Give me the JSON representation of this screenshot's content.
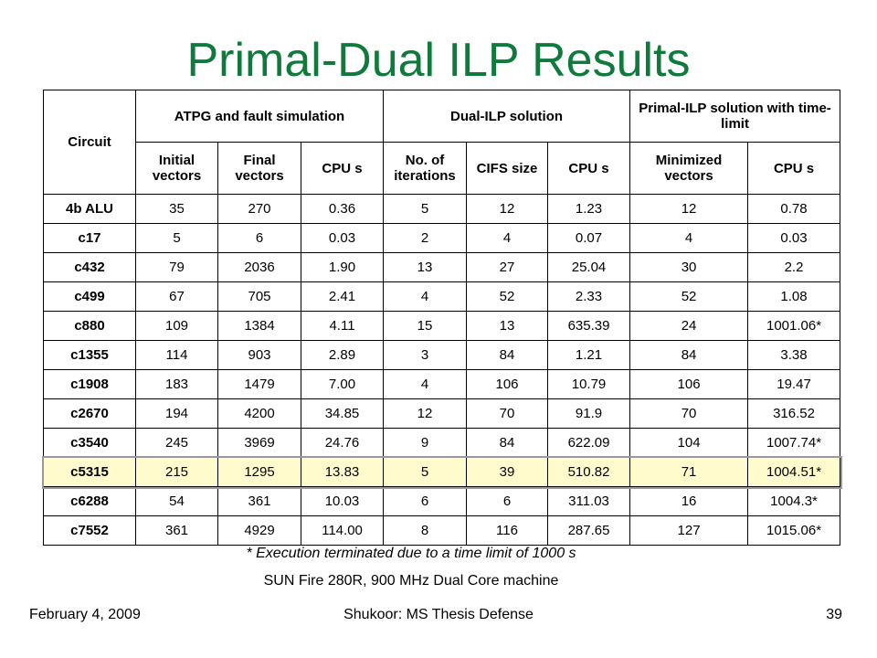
{
  "title": "Primal-Dual ILP Results",
  "header": {
    "circuit": "Circuit",
    "group_atpg": "ATPG and fault simulation",
    "group_dual": "Dual-ILP solution",
    "group_primal": "Primal-ILP solution with time-limit",
    "initial_vectors": "Initial vectors",
    "final_vectors": "Final vectors",
    "cpu": "CPU s",
    "iterations": "No. of iterations",
    "cifs": "CIFS size",
    "minimized_vectors": "Minimized vectors"
  },
  "rows": [
    [
      "4b ALU",
      "35",
      "270",
      "0.36",
      "5",
      "12",
      "1.23",
      "12",
      "0.78"
    ],
    [
      "c17",
      "5",
      "6",
      "0.03",
      "2",
      "4",
      "0.07",
      "4",
      "0.03"
    ],
    [
      "c432",
      "79",
      "2036",
      "1.90",
      "13",
      "27",
      "25.04",
      "30",
      "2.2"
    ],
    [
      "c499",
      "67",
      "705",
      "2.41",
      "4",
      "52",
      "2.33",
      "52",
      "1.08"
    ],
    [
      "c880",
      "109",
      "1384",
      "4.11",
      "15",
      "13",
      "635.39",
      "24",
      "1001.06*"
    ],
    [
      "c1355",
      "114",
      "903",
      "2.89",
      "3",
      "84",
      "1.21",
      "84",
      "3.38"
    ],
    [
      "c1908",
      "183",
      "1479",
      "7.00",
      "4",
      "106",
      "10.79",
      "106",
      "19.47"
    ],
    [
      "c2670",
      "194",
      "4200",
      "34.85",
      "12",
      "70",
      "91.9",
      "70",
      "316.52"
    ],
    [
      "c3540",
      "245",
      "3969",
      "24.76",
      "9",
      "84",
      "622.09",
      "104",
      "1007.74*"
    ],
    [
      "c5315",
      "215",
      "1295",
      "13.83",
      "5",
      "39",
      "510.82",
      "71",
      "1004.51*"
    ],
    [
      "c6288",
      "54",
      "361",
      "10.03",
      "6",
      "6",
      "311.03",
      "16",
      "1004.3*"
    ],
    [
      "c7552",
      "361",
      "4929",
      "114.00",
      "8",
      "116",
      "287.65",
      "127",
      "1015.06*"
    ]
  ],
  "highlight_row": "c5315",
  "highlight_color": "#fffbcc",
  "title_color": "#0f7a3c",
  "note": "* Execution terminated due to a time limit of 1000 s",
  "machine": "SUN Fire 280R, 900 MHz Dual Core machine",
  "footer": {
    "date": "February 4, 2009",
    "center": "Shukoor: MS Thesis Defense",
    "page": "39"
  }
}
